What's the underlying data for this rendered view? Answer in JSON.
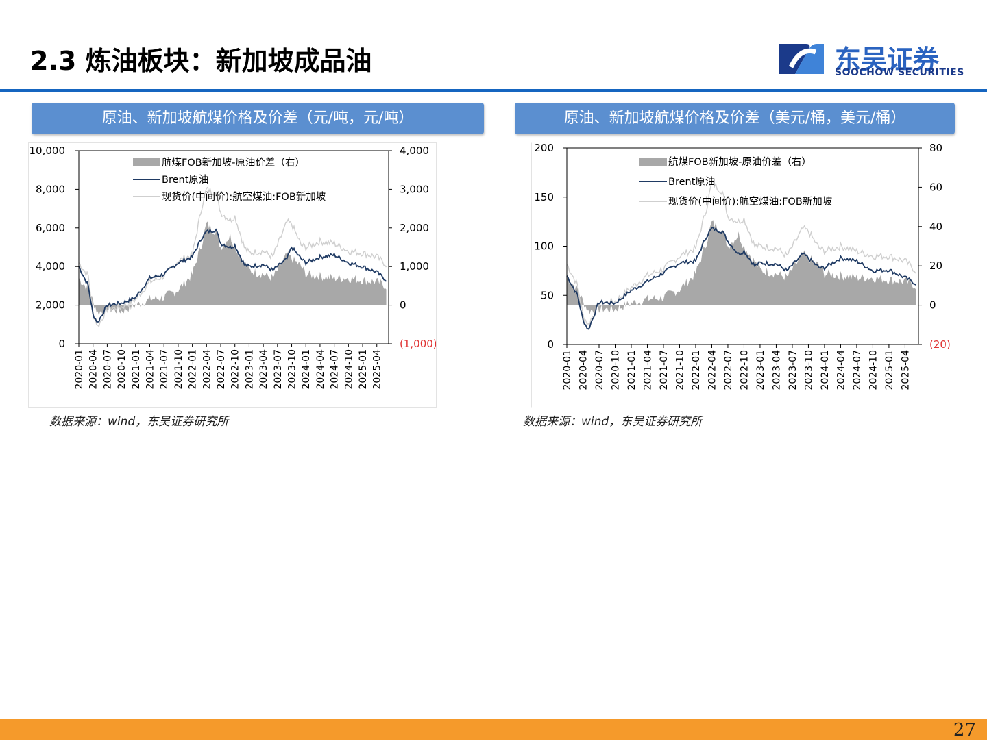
{
  "page": {
    "title": "2.3 炼油板块：新加坡成品油",
    "logo_cn": "东吴证券",
    "logo_en": "SOOCHOW SECURITIES",
    "page_number": "27",
    "colors": {
      "accent": "#1565c0",
      "header": "#5b8fd0",
      "footer": "#f59a2b"
    }
  },
  "panels": [
    {
      "header": "原油、新加坡航煤价格及价差（元/吨，元/吨）",
      "source": "数据来源：wind，东吴证券研究所"
    },
    {
      "header": "原油、新加坡航煤价格及价差（美元/桶，美元/桶）",
      "source": "数据来源：wind，东吴证券研究所"
    }
  ],
  "chart_data": [
    {
      "type": "line",
      "x_tick_labels": [
        "2020-01",
        "2020-04",
        "2020-07",
        "2020-10",
        "2021-01",
        "2021-04",
        "2021-07",
        "2021-10",
        "2022-01",
        "2022-04",
        "2022-07",
        "2022-10",
        "2023-01",
        "2023-04",
        "2023-07",
        "2023-10",
        "2024-01",
        "2024-04",
        "2024-07",
        "2024-10",
        "2025-01",
        "2025-04"
      ],
      "x": [
        "2020-01",
        "2020-03",
        "2020-04",
        "2020-05",
        "2020-07",
        "2020-10",
        "2021-01",
        "2021-04",
        "2021-07",
        "2021-10",
        "2022-01",
        "2022-03",
        "2022-04",
        "2022-06",
        "2022-07",
        "2022-09",
        "2022-10",
        "2022-12",
        "2023-01",
        "2023-04",
        "2023-06",
        "2023-09",
        "2023-10",
        "2023-12",
        "2024-01",
        "2024-04",
        "2024-07",
        "2024-10",
        "2025-01",
        "2025-04",
        "2025-06"
      ],
      "left_axis": {
        "ylim": [
          0,
          10000
        ],
        "ticks": [
          "0",
          "2,000",
          "4,000",
          "6,000",
          "8,000",
          "10,000"
        ]
      },
      "right_axis": {
        "ylim": [
          -1000,
          4000
        ],
        "ticks": [
          "(1,000)",
          "0",
          "1,000",
          "2,000",
          "3,000",
          "4,000"
        ],
        "negative_color": "#e03030"
      },
      "legend_position": "top-left",
      "series": [
        {
          "name": "航煤FOB新加坡-原油价差（右）",
          "type": "area",
          "axis": "right",
          "color": "#a8a8a8",
          "values": [
            700,
            400,
            100,
            -200,
            -100,
            -150,
            0,
            150,
            200,
            400,
            800,
            1600,
            2100,
            1900,
            1500,
            1800,
            1500,
            1100,
            900,
            800,
            700,
            1300,
            1200,
            1000,
            800,
            750,
            700,
            700,
            650,
            600,
            500
          ]
        },
        {
          "name": "Brent原油",
          "type": "line",
          "axis": "left",
          "color": "#1f3a63",
          "values": [
            4000,
            3000,
            1500,
            1100,
            2000,
            2100,
            2400,
            3400,
            3600,
            4200,
            4500,
            5500,
            5800,
            5900,
            5200,
            5000,
            5100,
            4100,
            4000,
            4100,
            3800,
            4400,
            5000,
            4400,
            4200,
            4500,
            4600,
            4200,
            4000,
            3700,
            3300
          ]
        },
        {
          "name": "现货价(中间价):航空煤油:FOB新加坡",
          "type": "line",
          "axis": "left",
          "color": "#cfcfcf",
          "values": [
            4200,
            3500,
            1600,
            900,
            1800,
            1900,
            2300,
            3200,
            3500,
            4300,
            4600,
            7100,
            8000,
            7800,
            6800,
            6400,
            6600,
            5000,
            4700,
            4800,
            4500,
            6300,
            6200,
            5100,
            5000,
            5300,
            5200,
            4800,
            4700,
            4500,
            4100
          ]
        }
      ]
    },
    {
      "type": "line",
      "x_tick_labels": [
        "2020-01",
        "2020-04",
        "2020-07",
        "2020-10",
        "2021-01",
        "2021-04",
        "2021-07",
        "2021-10",
        "2022-01",
        "2022-04",
        "2022-07",
        "2022-10",
        "2023-01",
        "2023-04",
        "2023-07",
        "2023-10",
        "2024-01",
        "2024-04",
        "2024-07",
        "2024-10",
        "2025-01",
        "2025-04"
      ],
      "x": [
        "2020-01",
        "2020-03",
        "2020-04",
        "2020-05",
        "2020-07",
        "2020-10",
        "2021-01",
        "2021-04",
        "2021-07",
        "2021-10",
        "2022-01",
        "2022-03",
        "2022-04",
        "2022-06",
        "2022-07",
        "2022-09",
        "2022-10",
        "2022-12",
        "2023-01",
        "2023-04",
        "2023-06",
        "2023-09",
        "2023-10",
        "2023-12",
        "2024-01",
        "2024-04",
        "2024-07",
        "2024-10",
        "2025-01",
        "2025-04",
        "2025-06"
      ],
      "left_axis": {
        "ylim": [
          0,
          200
        ],
        "ticks": [
          "0",
          "50",
          "100",
          "150",
          "200"
        ]
      },
      "right_axis": {
        "ylim": [
          -20,
          80
        ],
        "ticks": [
          "(20)",
          "0",
          "20",
          "40",
          "60",
          "80"
        ],
        "negative_color": "#e03030"
      },
      "legend_position": "top-left",
      "series": [
        {
          "name": "航煤FOB新加坡-原油价差（右）",
          "type": "area",
          "axis": "right",
          "color": "#a8a8a8",
          "values": [
            14,
            8,
            2,
            -3,
            -2,
            -2,
            1,
            3,
            4,
            8,
            16,
            32,
            42,
            38,
            30,
            36,
            30,
            22,
            18,
            16,
            14,
            26,
            24,
            20,
            16,
            15,
            14,
            14,
            13,
            12,
            10
          ]
        },
        {
          "name": "Brent原油",
          "type": "line",
          "axis": "left",
          "color": "#1f3a63",
          "values": [
            70,
            50,
            25,
            15,
            43,
            42,
            55,
            64,
            73,
            83,
            85,
            110,
            118,
            115,
            105,
            92,
            95,
            80,
            83,
            82,
            75,
            92,
            88,
            78,
            78,
            88,
            85,
            75,
            76,
            68,
            62
          ]
        },
        {
          "name": "现货价(中间价):航空煤油:FOB新加坡",
          "type": "line",
          "axis": "left",
          "color": "#cfcfcf",
          "values": [
            82,
            60,
            30,
            20,
            42,
            44,
            58,
            70,
            77,
            90,
            98,
            138,
            165,
            155,
            130,
            125,
            128,
            100,
            100,
            98,
            90,
            118,
            115,
            98,
            95,
            100,
            95,
            90,
            90,
            85,
            75
          ]
        }
      ]
    }
  ]
}
